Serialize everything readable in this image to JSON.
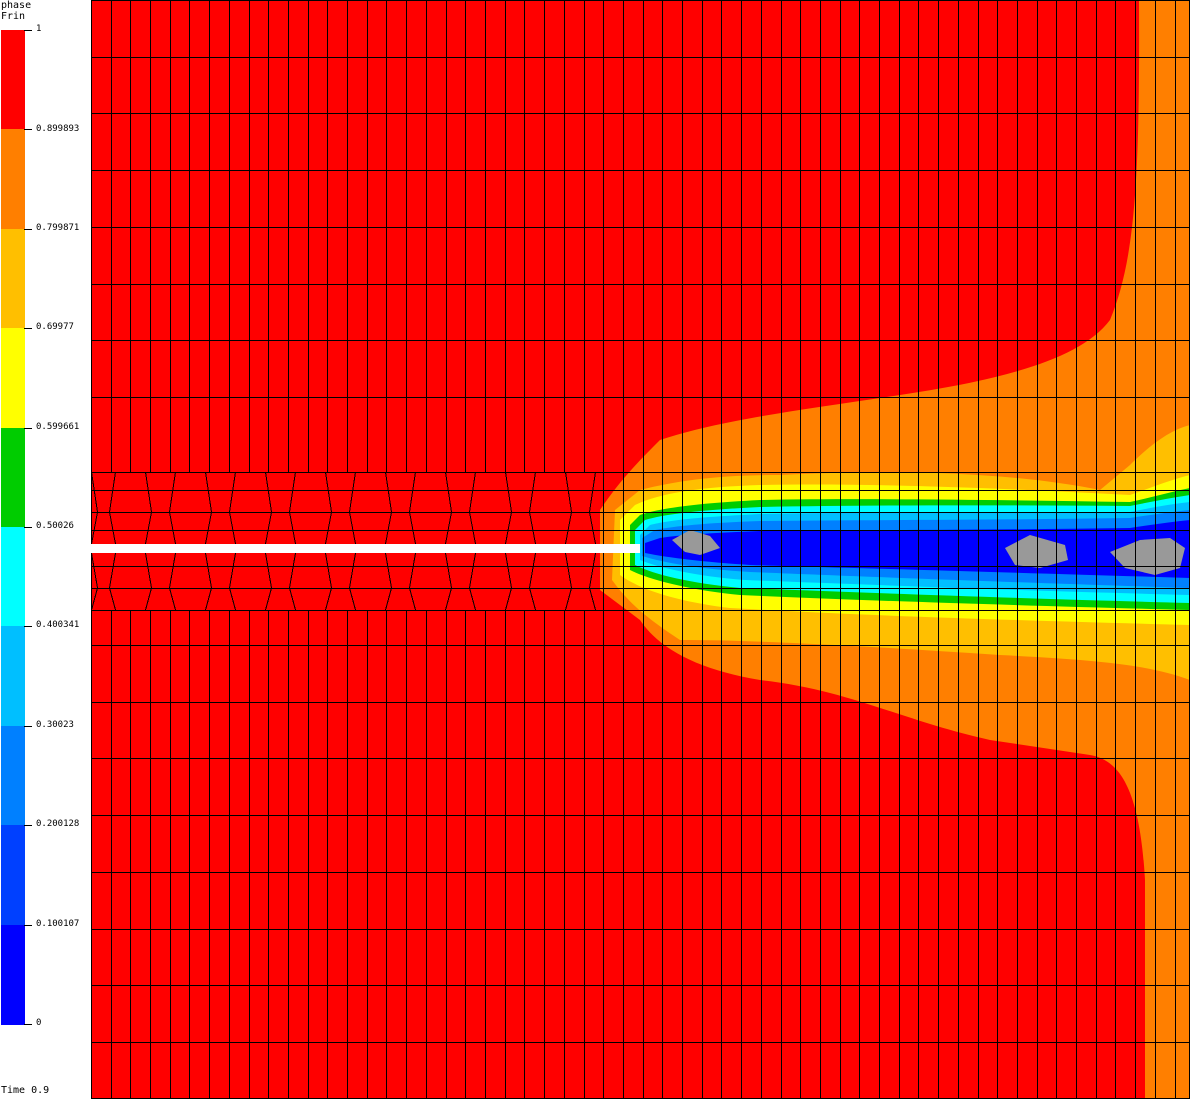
{
  "legend": {
    "title_line1": "phase",
    "title_line2": "Frin",
    "ticks": [
      "1",
      "0.899893",
      "0.799871",
      "0.69977",
      "0.599661",
      "0.50026",
      "0.400341",
      "0.30023",
      "0.200128",
      "0.100107",
      "0"
    ],
    "band_colors": [
      "#ff0000",
      "#ff7f00",
      "#ffbf00",
      "#ffff00",
      "#00cc00",
      "#00ffff",
      "#00bfff",
      "#0080ff",
      "#0040ff",
      "#0000ff"
    ]
  },
  "time_label": "Time 0.9",
  "colors": {
    "red": "#ff0000",
    "orange": "#ff7f00",
    "amber": "#ffbf00",
    "yellow": "#ffff00",
    "green": "#00cc00",
    "cyan": "#00ffff",
    "light_blue": "#00bfff",
    "mid_blue": "#0080ff",
    "blue": "#0000ff",
    "gray": "#999999",
    "mesh": "#000000"
  }
}
